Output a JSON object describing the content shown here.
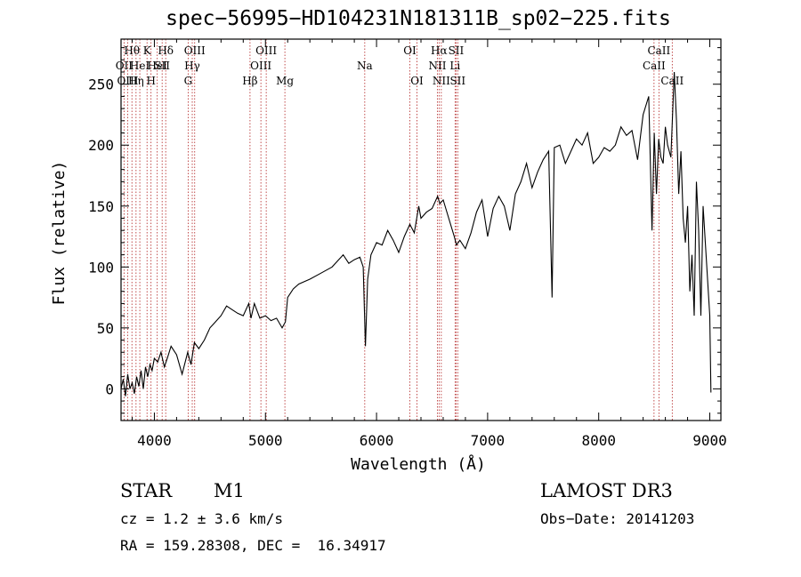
{
  "chart_data": {
    "type": "line",
    "title": "spec−56995−HD104231N181311B_sp02−225.fits",
    "xlabel": "Wavelength (Å)",
    "ylabel": "Flux (relative)",
    "xlim": [
      3700,
      9100
    ],
    "ylim": [
      -26,
      287
    ],
    "x_ticks": [
      4000,
      5000,
      6000,
      7000,
      8000,
      9000
    ],
    "y_ticks": [
      0,
      50,
      100,
      150,
      200,
      250
    ],
    "grid": false,
    "series": [
      {
        "x": [
          3700,
          3720,
          3740,
          3760,
          3780,
          3800,
          3820,
          3840,
          3860,
          3880,
          3900,
          3920,
          3940,
          3960,
          3980,
          4000,
          4030,
          4060,
          4090,
          4120,
          4150,
          4200,
          4250,
          4300,
          4330,
          4360,
          4400,
          4450,
          4500,
          4550,
          4600,
          4650,
          4700,
          4750,
          4800,
          4850,
          4870,
          4900,
          4950,
          5000,
          5050,
          5100,
          5150,
          5180,
          5200,
          5250,
          5300,
          5400,
          5500,
          5600,
          5700,
          5750,
          5800,
          5850,
          5880,
          5900,
          5920,
          5950,
          6000,
          6050,
          6100,
          6150,
          6200,
          6250,
          6300,
          6340,
          6380,
          6400,
          6450,
          6500,
          6550,
          6570,
          6600,
          6650,
          6700,
          6720,
          6750,
          6800,
          6850,
          6900,
          6950,
          7000,
          7050,
          7100,
          7150,
          7200,
          7250,
          7300,
          7350,
          7400,
          7450,
          7500,
          7550,
          7580,
          7600,
          7650,
          7700,
          7750,
          7800,
          7850,
          7900,
          7950,
          8000,
          8050,
          8100,
          8150,
          8200,
          8250,
          8300,
          8350,
          8400,
          8450,
          8480,
          8500,
          8520,
          8540,
          8560,
          8580,
          8600,
          8620,
          8650,
          8680,
          8700,
          8720,
          8740,
          8760,
          8780,
          8800,
          8820,
          8840,
          8860,
          8880,
          8900,
          8920,
          8940,
          8960,
          8980,
          9000,
          9010
        ],
        "y": [
          0,
          8,
          -6,
          12,
          0,
          5,
          -4,
          10,
          2,
          15,
          0,
          18,
          10,
          20,
          15,
          25,
          22,
          30,
          18,
          26,
          35,
          28,
          12,
          30,
          20,
          38,
          33,
          40,
          50,
          55,
          60,
          68,
          65,
          62,
          60,
          70,
          58,
          70,
          58,
          60,
          56,
          58,
          50,
          55,
          75,
          82,
          86,
          90,
          95,
          100,
          110,
          103,
          106,
          108,
          100,
          35,
          90,
          110,
          120,
          118,
          130,
          122,
          112,
          125,
          135,
          128,
          150,
          140,
          145,
          148,
          158,
          152,
          155,
          140,
          125,
          118,
          122,
          115,
          128,
          145,
          155,
          125,
          148,
          158,
          150,
          130,
          160,
          170,
          185,
          165,
          178,
          188,
          195,
          75,
          198,
          200,
          185,
          195,
          205,
          200,
          210,
          185,
          190,
          198,
          195,
          200,
          215,
          208,
          212,
          188,
          225,
          240,
          130,
          210,
          160,
          205,
          190,
          185,
          215,
          200,
          190,
          260,
          220,
          160,
          195,
          140,
          120,
          150,
          80,
          110,
          60,
          170,
          130,
          60,
          150,
          120,
          90,
          60,
          -3
        ]
      }
    ],
    "lines": [
      {
        "w": 3727,
        "label": "OII",
        "row": 2
      },
      {
        "w": 3760,
        "label": "OIII",
        "row": 3
      },
      {
        "w": 3798,
        "label": "Hθ",
        "row": 1
      },
      {
        "w": 3835,
        "label": "Hη",
        "row": 3
      },
      {
        "w": 3869,
        "label": "HeI",
        "row": 2
      },
      {
        "w": 3934,
        "label": "K",
        "row": 1
      },
      {
        "w": 3970,
        "label": "H",
        "row": 3
      },
      {
        "w": 4026,
        "label": "HeI",
        "row": 2
      },
      {
        "w": 4070,
        "label": "SII",
        "row": 2
      },
      {
        "w": 4102,
        "label": "Hδ",
        "row": 1
      },
      {
        "w": 4304,
        "label": "G",
        "row": 3
      },
      {
        "w": 4341,
        "label": "Hγ",
        "row": 2
      },
      {
        "w": 4363,
        "label": "OIII",
        "row": 1
      },
      {
        "w": 4861,
        "label": "Hβ",
        "row": 3
      },
      {
        "w": 4959,
        "label": "OIII",
        "row": 2
      },
      {
        "w": 5007,
        "label": "OIII",
        "row": 1
      },
      {
        "w": 5175,
        "label": "Mg",
        "row": 3
      },
      {
        "w": 5894,
        "label": "Na",
        "row": 2
      },
      {
        "w": 6300,
        "label": "OI",
        "row": 1
      },
      {
        "w": 6364,
        "label": "OI",
        "row": 3
      },
      {
        "w": 6548,
        "label": "NII",
        "row": 2
      },
      {
        "w": 6563,
        "label": "Hα",
        "row": 1
      },
      {
        "w": 6583,
        "label": "NII",
        "row": 3
      },
      {
        "w": 6707,
        "label": "Li",
        "row": 2
      },
      {
        "w": 6716,
        "label": "SII",
        "row": 1
      },
      {
        "w": 6731,
        "label": "SII",
        "row": 3
      },
      {
        "w": 8498,
        "label": "CaII",
        "row": 2
      },
      {
        "w": 8542,
        "label": "CaII",
        "row": 1
      },
      {
        "w": 8662,
        "label": "CaII",
        "row": 3
      }
    ]
  },
  "footer": {
    "object_class": "STAR",
    "subclass": "M1",
    "survey": "LAMOST DR3",
    "cz": "cz = 1.2 ± 3.6 km/s",
    "obs_date": "Obs−Date: 20141203",
    "radec": "RA = 159.28308, DEC =  16.34917"
  },
  "colors": {
    "spectrum": "#000000",
    "line_markers": "#b22222"
  }
}
